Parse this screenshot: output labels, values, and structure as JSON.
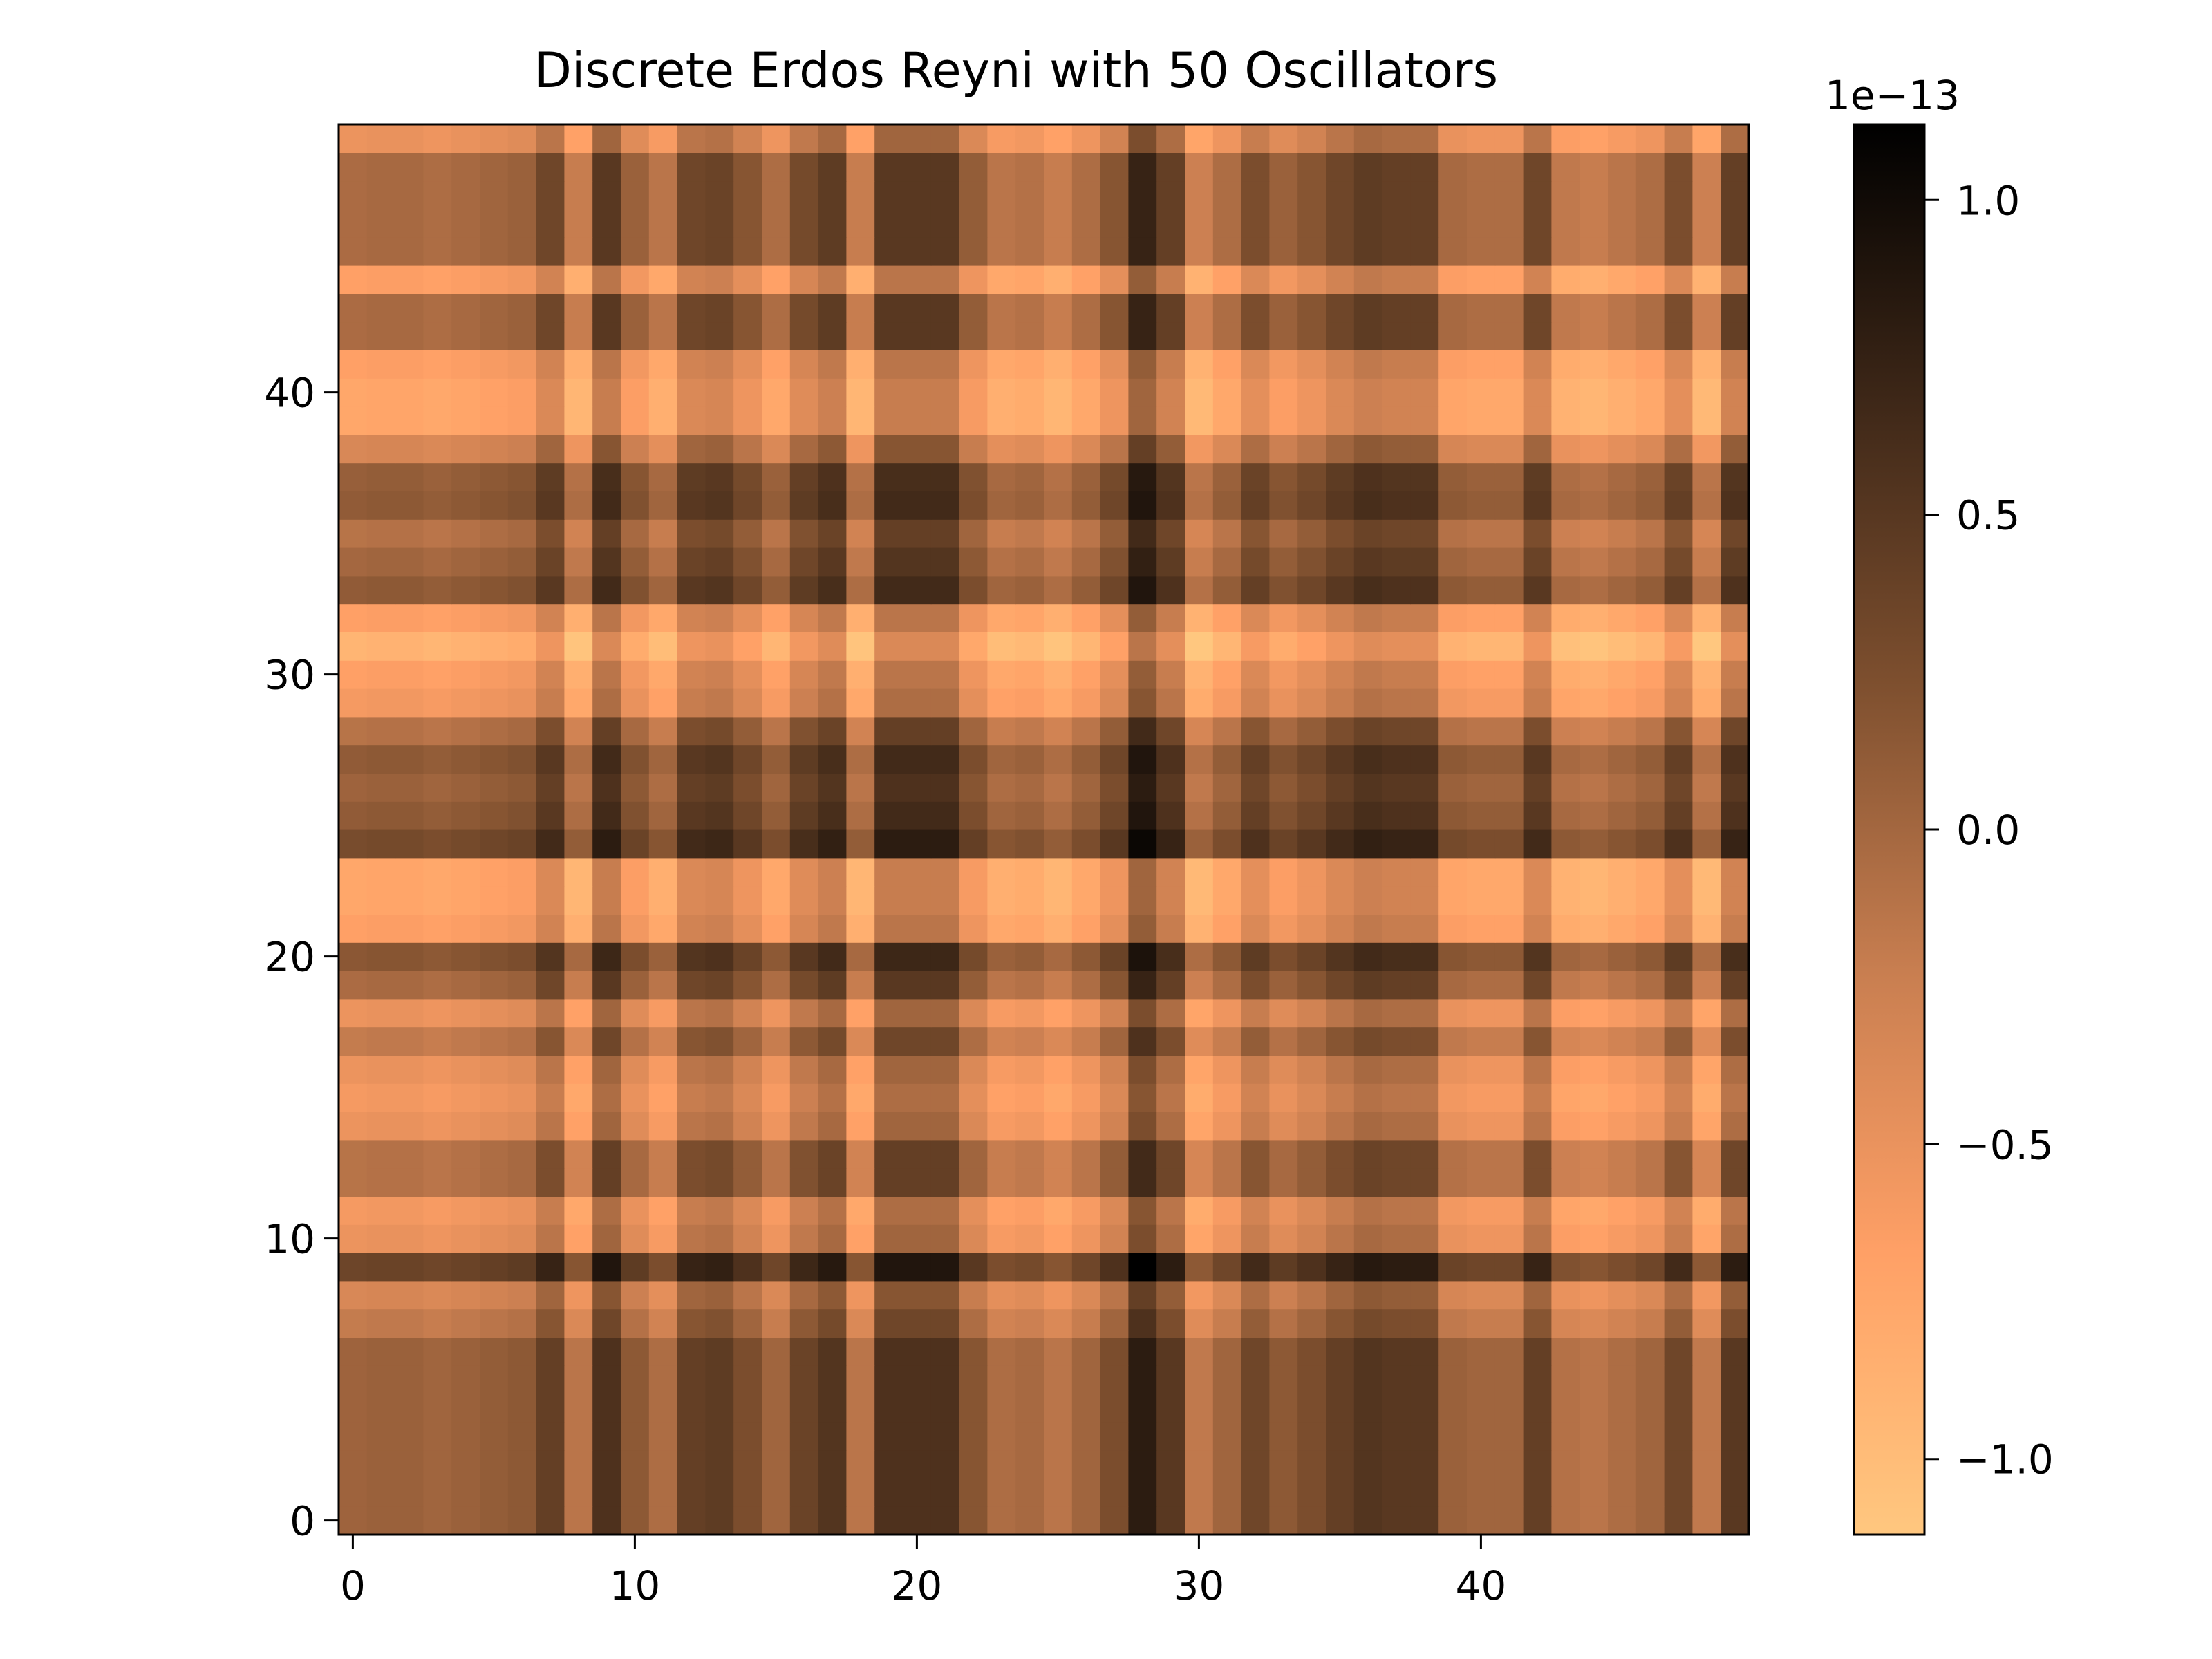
{
  "chart_data": {
    "type": "heatmap",
    "title": "Discrete Erdos Reyni with 50 Oscillators",
    "xlabel": "",
    "ylabel": "",
    "n": 50,
    "xlim": [
      -0.5,
      49.5
    ],
    "ylim": [
      -0.5,
      49.5
    ],
    "origin": "lower",
    "x_ticks": [
      0,
      10,
      20,
      30,
      40
    ],
    "x_tick_labels": [
      "0",
      "10",
      "20",
      "30",
      "40"
    ],
    "y_ticks": [
      0,
      10,
      20,
      30,
      40
    ],
    "y_tick_labels": [
      "0",
      "10",
      "20",
      "30",
      "40"
    ],
    "colormap": "copper_r",
    "colormap_stops": [
      "#ffc77f",
      "#ffa066",
      "#c87e50",
      "#7f502f",
      "#3f2818",
      "#000000"
    ],
    "value_scale": 1e-13,
    "vmin": -1.12,
    "vmax": 1.12,
    "column_factor": [
      0.32,
      0.35,
      0.35,
      0.3,
      0.35,
      0.4,
      0.45,
      0.8,
      0.1,
      1.0,
      0.45,
      0.2,
      0.8,
      0.85,
      0.6,
      0.3,
      0.75,
      0.95,
      0.1,
      1.0,
      1.0,
      1.0,
      0.5,
      0.2,
      0.25,
      0.1,
      0.3,
      0.6,
      1.3,
      0.9,
      0.05,
      0.3,
      0.7,
      0.45,
      0.6,
      0.8,
      0.95,
      0.9,
      0.9,
      0.35,
      0.3,
      0.3,
      0.8,
      0.15,
      0.1,
      0.2,
      0.3,
      0.7,
      0.05,
      0.9
    ],
    "row_factor": [
      0.5,
      0.5,
      0.5,
      0.5,
      0.5,
      0.5,
      0.5,
      0.2,
      0.0,
      0.9,
      -0.2,
      -0.3,
      0.3,
      0.3,
      -0.2,
      -0.3,
      -0.2,
      0.2,
      -0.2,
      0.4,
      0.65,
      -0.4,
      -0.5,
      -0.5,
      0.8,
      0.6,
      0.5,
      0.6,
      0.3,
      -0.3,
      -0.4,
      -0.7,
      -0.4,
      0.6,
      0.45,
      0.3,
      0.6,
      0.55,
      0.0,
      -0.5,
      -0.5,
      -0.4,
      0.4,
      0.4,
      -0.4,
      0.4,
      0.4,
      0.4,
      0.4,
      -0.2
    ],
    "colorbar": {
      "offset_label": "1e−13",
      "ticks": [
        -1.0,
        -0.5,
        0.0,
        0.5,
        1.0
      ],
      "tick_labels": [
        "−1.0",
        "−0.5",
        "0.0",
        "0.5",
        "1.0"
      ]
    }
  }
}
